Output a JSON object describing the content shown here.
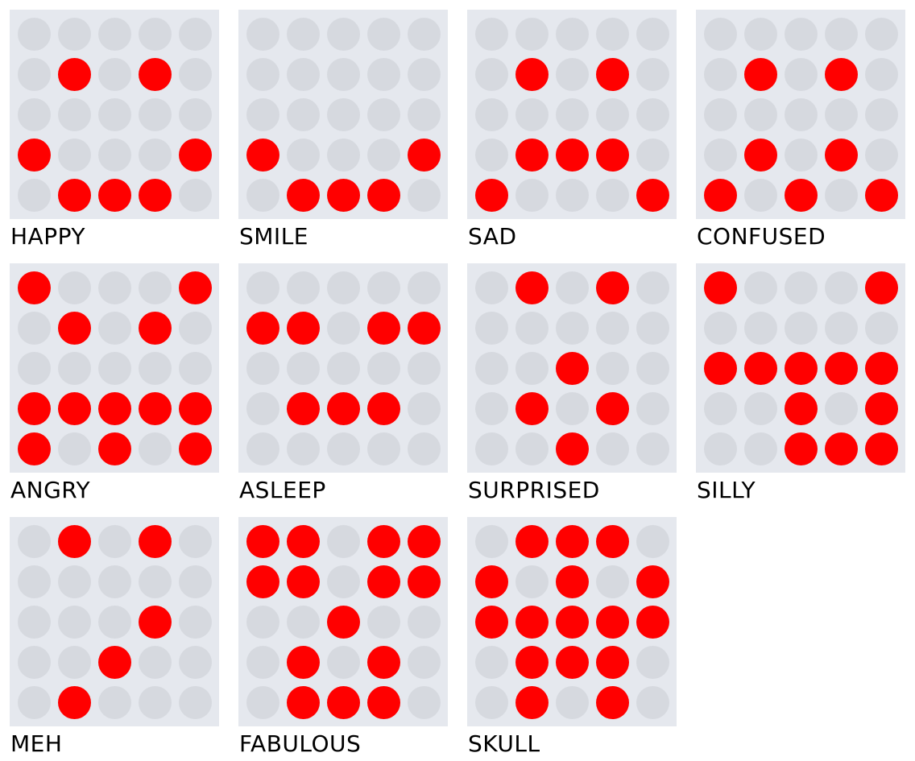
{
  "colors": {
    "background": "#ffffff",
    "board": "#e5e8ee",
    "led_off": "#d6d9df",
    "led_on": "#ff0000",
    "label": "#000000"
  },
  "icons": [
    {
      "label": "HAPPY",
      "pattern": [
        "00000",
        "01010",
        "00000",
        "10001",
        "01110"
      ]
    },
    {
      "label": "SMILE",
      "pattern": [
        "00000",
        "00000",
        "00000",
        "10001",
        "01110"
      ]
    },
    {
      "label": "SAD",
      "pattern": [
        "00000",
        "01010",
        "00000",
        "01110",
        "10001"
      ]
    },
    {
      "label": "CONFUSED",
      "pattern": [
        "00000",
        "01010",
        "00000",
        "01010",
        "10101"
      ]
    },
    {
      "label": "ANGRY",
      "pattern": [
        "10001",
        "01010",
        "00000",
        "11111",
        "10101"
      ]
    },
    {
      "label": "ASLEEP",
      "pattern": [
        "00000",
        "11011",
        "00000",
        "01110",
        "00000"
      ]
    },
    {
      "label": "SURPRISED",
      "pattern": [
        "01010",
        "00000",
        "00100",
        "01010",
        "00100"
      ]
    },
    {
      "label": "SILLY",
      "pattern": [
        "10001",
        "00000",
        "11111",
        "00101",
        "00111"
      ]
    },
    {
      "label": "MEH",
      "pattern": [
        "01010",
        "00000",
        "00010",
        "00100",
        "01000"
      ]
    },
    {
      "label": "FABULOUS",
      "pattern": [
        "11011",
        "11011",
        "00100",
        "01010",
        "01110"
      ]
    },
    {
      "label": "SKULL",
      "pattern": [
        "01110",
        "10101",
        "11111",
        "01110",
        "01010"
      ]
    }
  ]
}
